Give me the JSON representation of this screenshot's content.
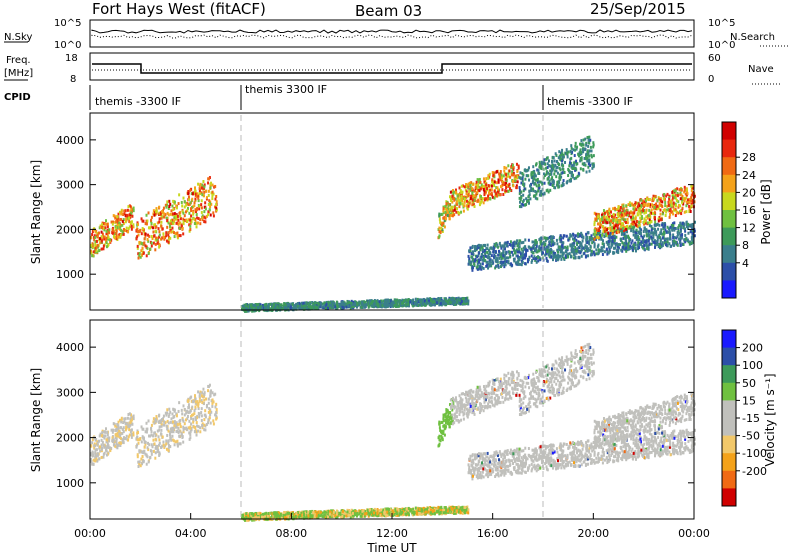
{
  "header": {
    "station": "Fort Hays West (fitACF)",
    "beam": "Beam 03",
    "date": "25/Sep/2015"
  },
  "noise_panel": {
    "left_label": "N.Sky",
    "right_label": "N.Search",
    "left_ticks": [
      "10^5",
      "10^0"
    ],
    "right_ticks": [
      "10^5",
      "10^0"
    ]
  },
  "freq_panel": {
    "left_label_1": "Freq.",
    "left_label_2": "[MHz]",
    "right_label": "Nave",
    "left_ticks": [
      "18",
      "8"
    ],
    "right_ticks": [
      "60",
      "0"
    ]
  },
  "cpid_panel": {
    "label": "CPID",
    "segments": [
      {
        "start_hour": 0,
        "text": "themis -3300 IF"
      },
      {
        "start_hour": 6,
        "text": "themis 3300 IF"
      },
      {
        "start_hour": 18,
        "text": "themis -3300 IF"
      }
    ]
  },
  "x_axis": {
    "label": "Time UT",
    "range_hours": [
      0,
      24
    ],
    "tick_labels": [
      "00:00",
      "04:00",
      "08:00",
      "12:00",
      "16:00",
      "20:00",
      "00:00"
    ]
  },
  "power_panel": {
    "ylabel": "Slant Range [km]",
    "yticks": [
      "4000",
      "3000",
      "2000",
      "1000"
    ],
    "colorbar_label": "Power [dB]",
    "colorbar_ticks": [
      "28",
      "24",
      "20",
      "16",
      "12",
      "8",
      "4"
    ]
  },
  "velocity_panel": {
    "ylabel": "Slant Range [km]",
    "yticks": [
      "4000",
      "3000",
      "2000",
      "1000"
    ],
    "colorbar_label": "Velocity [m s⁻¹]",
    "colorbar_ticks": [
      "200",
      "100",
      "50",
      "15",
      "-15",
      "-50",
      "-100",
      "-200"
    ]
  },
  "chart_data": {
    "type": "heatmap",
    "x_range_hours": [
      0,
      24
    ],
    "y_range_km": [
      200,
      4600
    ],
    "power_colors": [
      "#1a1aff",
      "#2c4fa8",
      "#3a7e8c",
      "#3d9a5a",
      "#6fc040",
      "#c8d81e",
      "#f4a21a",
      "#f06a14",
      "#e8280e",
      "#d00000"
    ],
    "velocity_colors": [
      "#d00000",
      "#f06a14",
      "#f4a21a",
      "#f2c86a",
      "#c0c0bc",
      "#c0c0bc",
      "#6fc040",
      "#3d9a5a",
      "#2c4fa8",
      "#1a1aff"
    ],
    "echo_regions": [
      {
        "t": [
          0.0,
          1.7
        ],
        "r": [
          1400,
          2600
        ],
        "peak_db": 28
      },
      {
        "t": [
          1.8,
          5.0
        ],
        "r": [
          1300,
          3200
        ],
        "peak_db": 28
      },
      {
        "t": [
          13.8,
          14.4
        ],
        "r": [
          1800,
          2900
        ],
        "peak_db": 24
      },
      {
        "t": [
          14.3,
          17.0
        ],
        "r": [
          2300,
          3500
        ],
        "peak_db": 28
      },
      {
        "t": [
          17.0,
          20.0
        ],
        "r": [
          2500,
          4100
        ],
        "peak_db": 12
      },
      {
        "t": [
          15.0,
          24.0
        ],
        "r": [
          1100,
          2200
        ],
        "peak_db": 10
      },
      {
        "t": [
          20.0,
          24.0
        ],
        "r": [
          1800,
          3000
        ],
        "peak_db": 28
      },
      {
        "t": [
          6.0,
          15.0
        ],
        "r": [
          200,
          500
        ],
        "peak_db": 12
      }
    ]
  }
}
